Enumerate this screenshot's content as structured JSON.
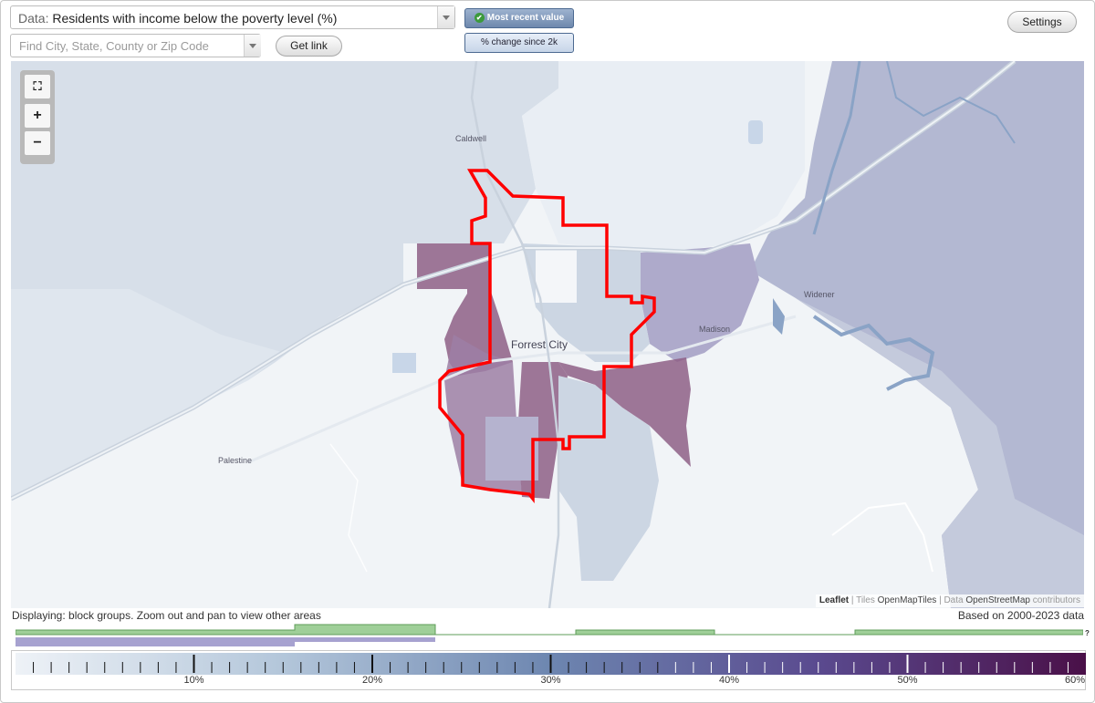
{
  "data_select": {
    "prefix": "Data:",
    "value": "Residents with income below the poverty level (%)"
  },
  "search": {
    "placeholder": "Find City, State, County or Zip Code"
  },
  "buttons": {
    "get_link": "Get link",
    "settings": "Settings"
  },
  "modes": [
    {
      "label": "Most recent value",
      "active": true
    },
    {
      "label": "% change since 2k",
      "active": false
    }
  ],
  "zoom_controls": {
    "fullscreen_icon": "fullscreen-icon",
    "zoom_in": "+",
    "zoom_out": "−"
  },
  "map": {
    "places": [
      {
        "name": "Caldwell"
      },
      {
        "name": "Forrest City"
      },
      {
        "name": "Madison"
      },
      {
        "name": "Widener"
      },
      {
        "name": "Palestine"
      }
    ],
    "colors": {
      "boundary": "#ff0000",
      "high_poverty": "#8e5f86",
      "mid_poverty": "#a9a7c7",
      "low_poverty": "#c9d4e2",
      "background": "#f1f4f7",
      "water": "#8aa3c6"
    }
  },
  "attribution": {
    "leaflet": "Leaflet",
    "sep1": " | Tiles ",
    "tiles": "OpenMapTiles",
    "sep2": " | Data ",
    "data": "OpenStreetMap",
    "contributors": " contributors"
  },
  "status": {
    "displaying": "Displaying: block groups. Zoom out and pan to view other areas",
    "based_on": "Based on 2000-2023 data"
  },
  "timeline": {
    "help": "?"
  },
  "legend": {
    "labels": [
      "10%",
      "20%",
      "30%",
      "40%",
      "50%",
      "60%"
    ],
    "min": 0,
    "max": 60,
    "color_low": "#eef2f7",
    "color_high": "#4a1048"
  }
}
